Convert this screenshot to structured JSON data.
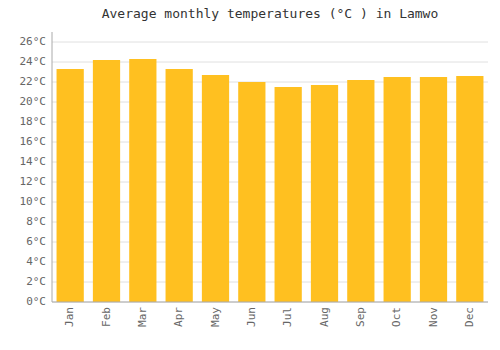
{
  "chart_data": {
    "type": "bar",
    "title": "Average monthly temperatures (°C ) in Lamwo",
    "categories": [
      "Jan",
      "Feb",
      "Mar",
      "Apr",
      "May",
      "Jun",
      "Jul",
      "Aug",
      "Sep",
      "Oct",
      "Nov",
      "Dec"
    ],
    "values": [
      23.3,
      24.2,
      24.3,
      23.3,
      22.7,
      22.0,
      21.5,
      21.7,
      22.2,
      22.5,
      22.5,
      22.6
    ],
    "color": "#FFC020",
    "ylim": [
      0,
      27
    ],
    "yticks": [
      {
        "value": 0,
        "label": "0°C"
      },
      {
        "value": 2,
        "label": "2°C"
      },
      {
        "value": 4,
        "label": "4°C"
      },
      {
        "value": 6,
        "label": "6°C"
      },
      {
        "value": 8,
        "label": "8°C"
      },
      {
        "value": 10,
        "label": "10°C"
      },
      {
        "value": 12,
        "label": "12°C"
      },
      {
        "value": 14,
        "label": "14°C"
      },
      {
        "value": 16,
        "label": "16°C"
      },
      {
        "value": 18,
        "label": "18°C"
      },
      {
        "value": 20,
        "label": "20°C"
      },
      {
        "value": 22,
        "label": "22°C"
      },
      {
        "value": 24,
        "label": "24°C"
      },
      {
        "value": 26,
        "label": "26°C"
      }
    ],
    "grid": true
  }
}
